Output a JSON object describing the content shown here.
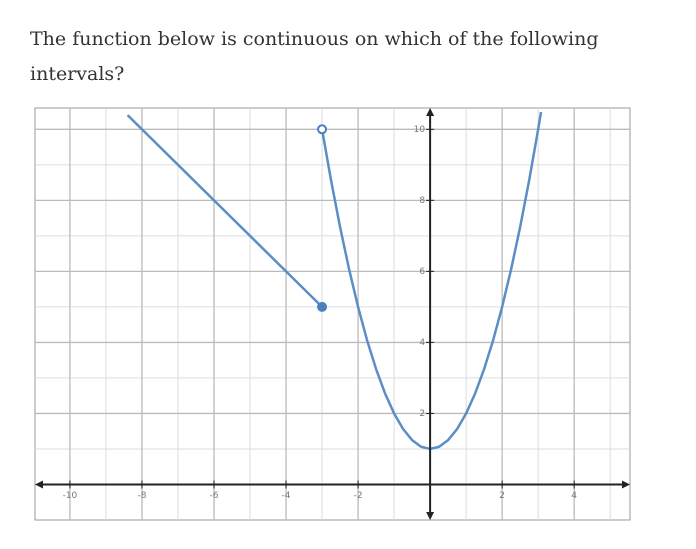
{
  "question": "The function below is continuous on which of the following intervals?",
  "chart_data": {
    "type": "line",
    "xlim": [
      -10.97,
      5.55
    ],
    "ylim": [
      -1.0,
      10.6
    ],
    "xticks": [
      -10,
      -8,
      -6,
      -4,
      -2,
      2,
      4
    ],
    "yticks": [
      2,
      4,
      6,
      8,
      10
    ],
    "xmajor": [
      -10,
      -8,
      -6,
      -4,
      -2,
      2,
      4
    ],
    "xminor": [
      -9,
      -7,
      -5,
      -3,
      -1,
      1,
      3,
      5
    ],
    "ymajor": [
      2,
      4,
      6,
      8,
      10
    ],
    "yminor": [
      1,
      3,
      5,
      7,
      9
    ],
    "grid": true,
    "series": [
      {
        "color": "#5b8ec4",
        "x": [
          -8.4,
          -3
        ],
        "values": [
          10.4,
          5
        ]
      },
      {
        "color": "#5b8ec4",
        "x": [
          -3,
          -2.75,
          -2.5,
          -2.25,
          -2,
          -1.75,
          -1.5,
          -1.25,
          -1,
          -0.75,
          -0.5,
          -0.25,
          0,
          0.25,
          0.5,
          0.75,
          1,
          1.25,
          1.5,
          1.75,
          2,
          2.25,
          2.5,
          2.75,
          3,
          3.08
        ],
        "values": [
          10,
          8.5625,
          7.25,
          6.0625,
          5,
          4.0625,
          3.25,
          2.5625,
          2,
          1.5625,
          1.25,
          1.0625,
          1,
          1.0625,
          1.25,
          1.5625,
          2,
          2.5625,
          3.25,
          4.0625,
          5,
          6.0625,
          7.25,
          8.5625,
          10,
          10.4864
        ]
      }
    ],
    "points": [
      {
        "x": -3,
        "y": 5,
        "filled": true,
        "color": "#4a7fc0"
      },
      {
        "x": -3,
        "y": 10,
        "filled": false,
        "color": "#4a7fc0"
      }
    ]
  }
}
